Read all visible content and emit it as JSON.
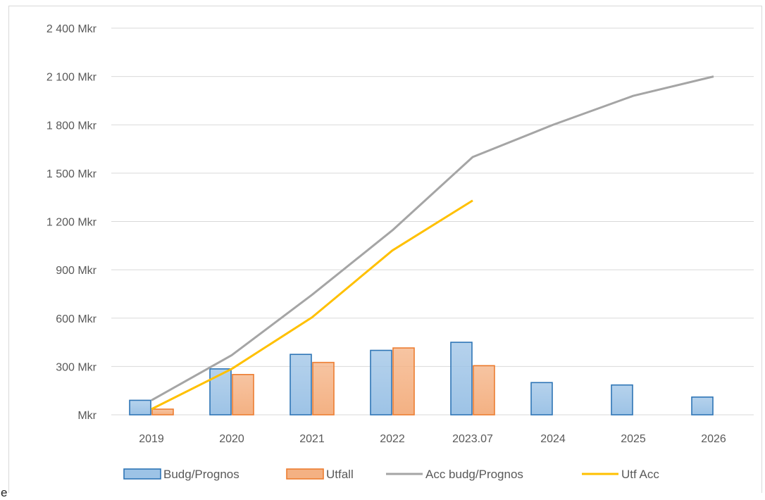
{
  "stray_text": "e",
  "chart_data": {
    "type": "bar",
    "categories": [
      "2019",
      "2020",
      "2021",
      "2022",
      "2023.07",
      "2024",
      "2025",
      "2026"
    ],
    "ylim": [
      0,
      2400
    ],
    "yticks": [
      0,
      300,
      600,
      900,
      1200,
      1500,
      1800,
      2100,
      2400
    ],
    "ytick_labels": [
      "Mkr",
      "300 Mkr",
      "600 Mkr",
      "900 Mkr",
      "1 200 Mkr",
      "1 500 Mkr",
      "1 800 Mkr",
      "2 100 Mkr",
      "2 400 Mkr"
    ],
    "grid": true,
    "legend_position": "bottom",
    "bar_series": [
      {
        "name": "Budg/Prognos",
        "color": "#9dc3e6",
        "edge": "#2e75b6",
        "values": [
          90,
          285,
          375,
          400,
          450,
          200,
          185,
          110
        ]
      },
      {
        "name": "Utfall",
        "color": "#f4b183",
        "edge": "#ed7d31",
        "values": [
          35,
          250,
          325,
          415,
          305,
          null,
          null,
          null
        ]
      }
    ],
    "line_series": [
      {
        "name": "Acc budg/Prognos",
        "color": "#a5a5a5",
        "values": [
          90,
          370,
          745,
          1145,
          1600,
          1800,
          1980,
          2100
        ]
      },
      {
        "name": "Utf Acc",
        "color": "#ffc000",
        "values": [
          35,
          285,
          605,
          1020,
          1330,
          null,
          null,
          null
        ]
      }
    ]
  }
}
